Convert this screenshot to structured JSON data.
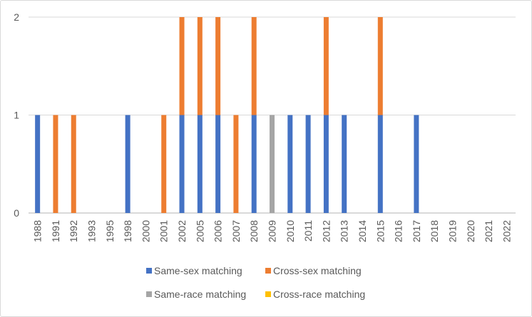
{
  "chart_data": {
    "type": "bar",
    "stacked": true,
    "title": "",
    "xlabel": "",
    "ylabel": "",
    "ylim": [
      0,
      2
    ],
    "yticks": [
      0,
      1,
      2
    ],
    "grid": true,
    "legend_position": "bottom",
    "categories": [
      "1988",
      "1991",
      "1992",
      "1993",
      "1995",
      "1998",
      "2000",
      "2001",
      "2002",
      "2005",
      "2006",
      "2007",
      "2008",
      "2009",
      "2010",
      "2011",
      "2012",
      "2013",
      "2014",
      "2015",
      "2016",
      "2017",
      "2018",
      "2019",
      "2020",
      "2021",
      "2022"
    ],
    "series": [
      {
        "name": "Same-sex matching",
        "color": "#4472C4",
        "values": [
          1,
          0,
          0,
          0,
          0,
          1,
          0,
          0,
          1,
          1,
          1,
          0,
          1,
          0,
          1,
          1,
          1,
          1,
          0,
          1,
          0,
          1,
          0,
          0,
          0,
          0,
          0
        ]
      },
      {
        "name": "Cross-sex matching",
        "color": "#ED7D31",
        "values": [
          0,
          1,
          1,
          0,
          0,
          0,
          0,
          1,
          1,
          1,
          1,
          1,
          1,
          0,
          0,
          0,
          1,
          0,
          0,
          1,
          0,
          0,
          0,
          0,
          0,
          0,
          0
        ]
      },
      {
        "name": "Same-race matching",
        "color": "#A5A5A5",
        "values": [
          0,
          0,
          0,
          0,
          0,
          0,
          0,
          0,
          0,
          0,
          0,
          0,
          0,
          1,
          0,
          0,
          0,
          0,
          0,
          0,
          0,
          0,
          0,
          0,
          0,
          0,
          0
        ]
      },
      {
        "name": "Cross-race matching",
        "color": "#FFC000",
        "values": [
          0,
          0,
          0,
          0,
          0,
          0,
          0,
          0,
          0,
          0,
          0,
          0,
          0,
          0,
          0,
          0,
          0,
          0,
          0,
          0,
          0,
          0,
          0,
          0,
          0,
          0,
          0
        ]
      }
    ]
  }
}
